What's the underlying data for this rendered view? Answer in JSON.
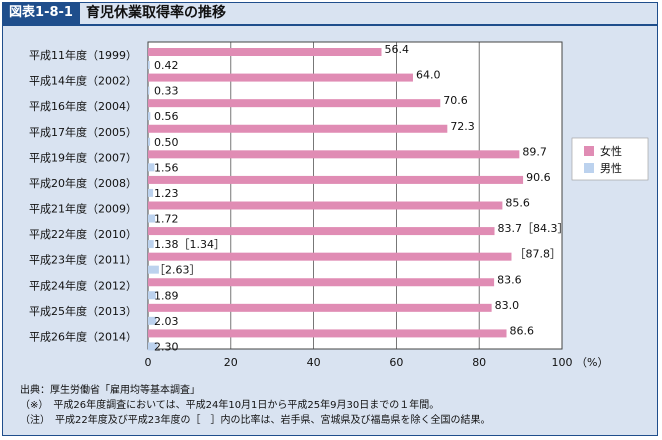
{
  "figure": {
    "label": "図表1-8-1",
    "title": "育児休業取得率の推移"
  },
  "chart_data": {
    "type": "bar",
    "orientation": "horizontal",
    "categories": [
      "平成11年度（1999）",
      "平成14年度（2002）",
      "平成16年度（2004）",
      "平成17年度（2005）",
      "平成19年度（2007）",
      "平成20年度（2008）",
      "平成21年度（2009）",
      "平成22年度（2010）",
      "平成23年度（2011）",
      "平成24年度（2012）",
      "平成25年度（2013）",
      "平成26年度（2014）"
    ],
    "series": [
      {
        "name": "女性",
        "color": "#e08cb4",
        "values": [
          56.4,
          64.0,
          70.6,
          72.3,
          89.7,
          90.6,
          85.6,
          83.7,
          87.8,
          83.6,
          83.0,
          86.6
        ],
        "labels": [
          "56.4",
          "64.0",
          "70.6",
          "72.3",
          "89.7",
          "90.6",
          "85.6",
          "83.7［84.3］",
          "［87.8］",
          "83.6",
          "83.0",
          "86.6"
        ]
      },
      {
        "name": "男性",
        "color": "#bcd2ee",
        "values": [
          0.42,
          0.33,
          0.56,
          0.5,
          1.56,
          1.23,
          1.72,
          1.38,
          2.63,
          1.89,
          2.03,
          2.3
        ],
        "labels": [
          "0.42",
          "0.33",
          "0.56",
          "0.50",
          "1.56",
          "1.23",
          "1.72",
          "1.38［1.34］",
          "［2.63］",
          "1.89",
          "2.03",
          "2.30"
        ]
      }
    ],
    "xlim": [
      0,
      100
    ],
    "xticks": [
      0,
      20,
      40,
      60,
      80,
      100
    ],
    "xtick_labels": [
      "0",
      "20",
      "40",
      "60",
      "80",
      "100"
    ],
    "xunit": "（%）",
    "grid": true,
    "legend": "right"
  },
  "notes": {
    "source": "出典：厚生労働省「雇用均等基本調査」",
    "note1": "（※）　平成26年度調査においては、平成24年10月1日から平成25年9月30日までの１年間。",
    "note2": "（注）　平成22年度及び平成23年度の［　］内の比率は、岩手県、宮城県及び福島県を除く全国の結果。"
  }
}
